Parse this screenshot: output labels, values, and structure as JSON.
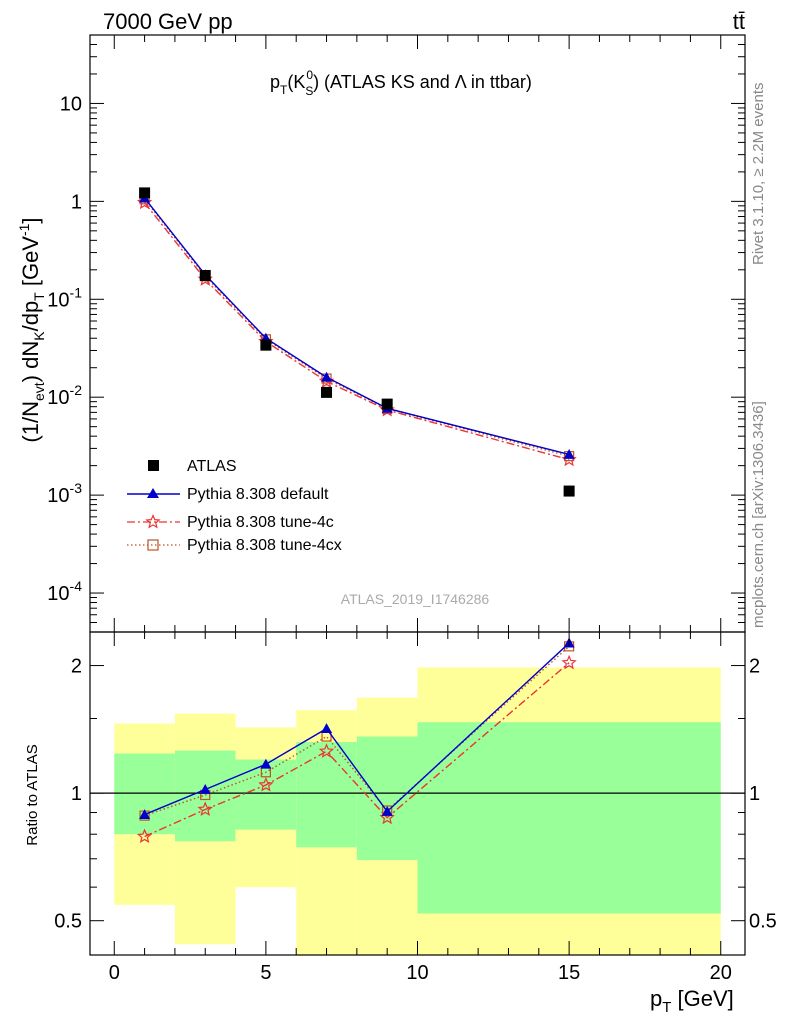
{
  "header": {
    "left": "7000 GeV pp",
    "right": "tt̄"
  },
  "plot_title": {
    "main": "p",
    "sub_T": "T",
    "k": "(K",
    "k_sub": "S",
    "k_sup": "0",
    "rest": ") (ATLAS KS and Λ in ttbar)"
  },
  "side_text": {
    "rivet": "Rivet 3.1.10, ≥ 2.2M events",
    "mcplots": "mcplots.cern.ch [arXiv:1306.3436]"
  },
  "watermark": "ATLAS_2019_I1746286",
  "y_label_main": "(1/N_evt) dN_K/dp_T [GeV^-1]",
  "y_label_ratio": "Ratio to ATLAS",
  "x_label": "p_T [GeV]",
  "colors": {
    "atlas": "#000000",
    "default": "#0000cc",
    "tune4c": "#ee3333",
    "tune4cx": "#bb5522",
    "band_inner": "#99ff99",
    "band_outer": "#ffff99"
  },
  "chart_data": [
    {
      "type": "line",
      "panel": "main",
      "yscale": "log",
      "xlim": [
        -0.8,
        20.8
      ],
      "ylim": [
        4e-05,
        50
      ],
      "y_tick_labels": [
        "10",
        "1",
        "10^-1",
        "10^-2",
        "10^-3",
        "10^-4"
      ],
      "x": [
        1,
        3,
        5,
        7,
        9,
        15
      ],
      "series": [
        {
          "name": "ATLAS",
          "marker": "square",
          "values": [
            1.22,
            0.175,
            0.034,
            0.0112,
            0.0085,
            0.0011
          ]
        },
        {
          "name": "Pythia 8.308 default",
          "marker": "triangle",
          "values": [
            1.08,
            0.178,
            0.04,
            0.016,
            0.0077,
            0.0026
          ]
        },
        {
          "name": "Pythia 8.308 tune-4c",
          "marker": "star",
          "values": [
            0.97,
            0.16,
            0.037,
            0.0145,
            0.0074,
            0.0023
          ]
        },
        {
          "name": "Pythia 8.308 tune-4cx",
          "marker": "open-square",
          "values": [
            1.05,
            0.172,
            0.039,
            0.0155,
            0.0076,
            0.0025
          ]
        }
      ]
    },
    {
      "type": "line",
      "panel": "ratio",
      "yscale": "log",
      "xlim": [
        -0.8,
        20.8
      ],
      "ylim": [
        0.415,
        2.4
      ],
      "x_ticks": [
        0,
        5,
        10,
        15,
        20
      ],
      "y_ticks": [
        0.5,
        1,
        2
      ],
      "x": [
        1,
        3,
        5,
        7,
        9,
        15
      ],
      "series": [
        {
          "name": "Pythia 8.308 default",
          "values": [
            0.89,
            1.02,
            1.17,
            1.42,
            0.905,
            2.26
          ]
        },
        {
          "name": "Pythia 8.308 tune-4c",
          "values": [
            0.79,
            0.915,
            1.045,
            1.255,
            0.875,
            2.03
          ]
        },
        {
          "name": "Pythia 8.308 tune-4cx",
          "values": [
            0.885,
            0.99,
            1.12,
            1.36,
            0.91,
            2.22
          ]
        }
      ],
      "bands": [
        {
          "x0": 0,
          "x1": 2,
          "inner": [
            0.8,
            1.24
          ],
          "outer": [
            0.545,
            1.46
          ]
        },
        {
          "x0": 2,
          "x1": 4,
          "inner": [
            0.77,
            1.26
          ],
          "outer": [
            0.44,
            1.54
          ]
        },
        {
          "x0": 4,
          "x1": 6,
          "inner": [
            0.82,
            1.2
          ],
          "outer": [
            0.6,
            1.43
          ]
        },
        {
          "x0": 6,
          "x1": 8,
          "inner": [
            0.745,
            1.32
          ],
          "outer": [
            0.38,
            1.57
          ]
        },
        {
          "x0": 8,
          "x1": 10,
          "inner": [
            0.695,
            1.36
          ],
          "outer": [
            0.35,
            1.68
          ]
        },
        {
          "x0": 10,
          "x1": 20,
          "inner": [
            0.52,
            1.47
          ],
          "outer": [
            0.36,
            1.98
          ]
        }
      ]
    }
  ]
}
